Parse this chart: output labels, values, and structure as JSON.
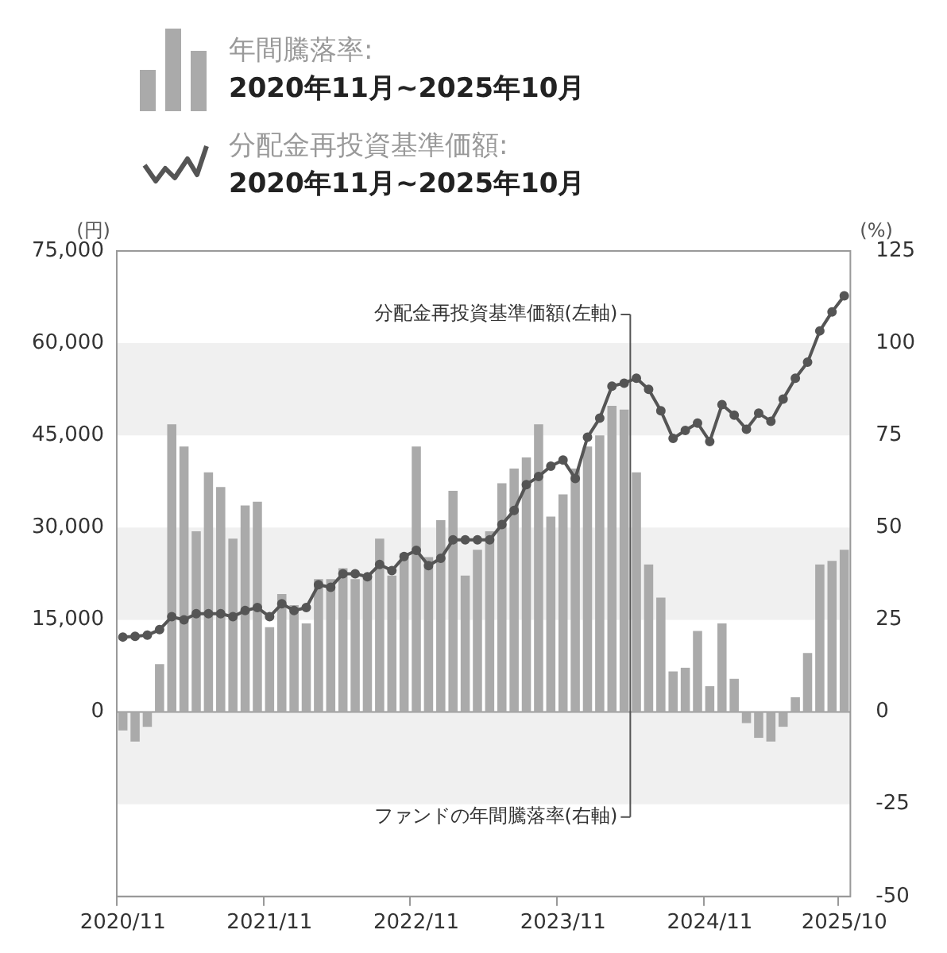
{
  "chart_data": {
    "type": "bar",
    "categories": [
      "2020/11",
      null,
      null,
      null,
      null,
      null,
      null,
      null,
      null,
      null,
      null,
      null,
      "2021/11",
      null,
      null,
      null,
      null,
      null,
      null,
      null,
      null,
      null,
      null,
      null,
      "2022/11",
      null,
      null,
      null,
      null,
      null,
      null,
      null,
      null,
      null,
      null,
      null,
      "2023/11",
      null,
      null,
      null,
      null,
      null,
      null,
      null,
      null,
      null,
      null,
      null,
      "2024/11",
      null,
      null,
      null,
      null,
      null,
      null,
      null,
      null,
      null,
      null,
      "2025/10"
    ],
    "series": [
      {
        "name": "年間騰落率:\n2020年11月~2025年10月",
        "axis": "y2",
        "color": "#aaaaaa",
        "values": [
          -5,
          -8,
          -4,
          13,
          78,
          72,
          49,
          65,
          61,
          47,
          56,
          57,
          23,
          32,
          29,
          24,
          36,
          36,
          39,
          36,
          37,
          47,
          37,
          43,
          72,
          42,
          52,
          60,
          37,
          44,
          49,
          62,
          66,
          69,
          78,
          53,
          59,
          66,
          72,
          75,
          83,
          82,
          65,
          40,
          31,
          11,
          12,
          22,
          7,
          24,
          9,
          -3,
          -7,
          -8,
          -4,
          4,
          16,
          40,
          41,
          44
        ]
      },
      {
        "name": "分配金再投資基準価額:\n2020年11月~2025年10月",
        "type": "line",
        "color": "#555555",
        "values": [
          12200,
          12300,
          12500,
          13400,
          15500,
          15000,
          16000,
          16000,
          16000,
          15500,
          16500,
          17000,
          15500,
          17600,
          16500,
          17000,
          20700,
          20300,
          22500,
          22500,
          22000,
          24000,
          23000,
          25300,
          26300,
          23800,
          25000,
          28000,
          28000,
          28000,
          28000,
          30500,
          32800,
          37000,
          38300,
          40000,
          41000,
          38000,
          44700,
          47800,
          53000,
          53500,
          54300,
          52500,
          49000,
          44500,
          45800,
          47000,
          44000,
          50000,
          48300,
          46000,
          48600,
          47300,
          50900,
          54300,
          56900,
          62000,
          65100,
          67700
        ]
      }
    ],
    "ylabel": "(円)",
    "y2label": "(%)",
    "ylim": [
      -30000,
      75000
    ],
    "yticks": [
      {
        "value": 0,
        "label": "0"
      },
      {
        "value": 15000,
        "label": "15,000"
      },
      {
        "value": 30000,
        "label": "30,000"
      },
      {
        "value": 45000,
        "label": "45,000"
      },
      {
        "value": 60000,
        "label": "60,000"
      },
      {
        "value": 75000,
        "label": "75,000"
      }
    ],
    "y2lim": [
      -50,
      125
    ],
    "y2ticks": [
      -50,
      -25,
      0,
      25,
      50,
      75,
      100,
      125
    ],
    "bands": [
      {
        "axis": "y",
        "from": 45000,
        "to": 60000,
        "color": "#f0f0f0"
      },
      {
        "axis": "y",
        "from": 15000,
        "to": 30000,
        "color": "#f0f0f0"
      },
      {
        "axis": "y2",
        "from": -25,
        "to": 0,
        "color": "#f0f0f0"
      }
    ],
    "annotations": [
      "分配金再投資基準価額(左軸)",
      "ファンドの年間騰落率(右軸)"
    ],
    "marker": "circle",
    "line_style": "solid",
    "grid": false,
    "legend": "top"
  }
}
